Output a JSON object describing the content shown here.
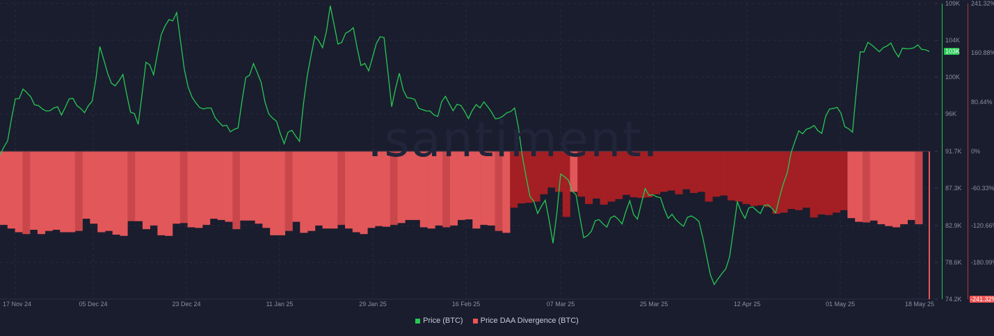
{
  "watermark": ".santiment.",
  "legend": [
    {
      "label": "Price (BTC)",
      "color": "#26c953"
    },
    {
      "label": "Price DAA Divergence (BTC)",
      "color": "#f05454"
    }
  ],
  "colors": {
    "background": "#1a1d2e",
    "price_line": "#26c953",
    "bar_light": "#e2575a",
    "bar_dark": "#a31f24",
    "gridline": "#262a3c",
    "axis_text": "#8a8f9f",
    "price_badge_bg": "#26c953",
    "div_badge_bg": "#f05454"
  },
  "price_badge": "103K",
  "divergence_badge": "-241.32%",
  "chart_data": {
    "type": "line+bar",
    "title": "",
    "series": [
      {
        "name": "Price (BTC)",
        "type": "line",
        "axis": "left-price",
        "values_k": [
          91.2,
          93.0,
          97.5,
          99.0,
          97.8,
          97.0,
          96.2,
          97.0,
          95.8,
          98.0,
          97.0,
          96.3,
          97.2,
          104.0,
          100.6,
          99.3,
          100.5,
          96.5,
          94.7,
          102.3,
          100.6,
          105.5,
          106.8,
          108.0,
          101.0,
          98.0,
          96.6,
          97.0,
          95.5,
          94.8,
          93.9,
          94.5,
          100.0,
          102.0,
          99.5,
          96.0,
          95.0,
          92.8,
          94.0,
          93.0,
          100.5,
          105.3,
          103.5,
          108.8,
          104.0,
          105.5,
          106.0,
          102.0,
          101.0,
          104.5,
          105.0,
          97.0,
          100.5,
          98.0,
          97.5,
          96.5,
          96.2,
          96.0,
          98.0,
          96.6,
          97.0,
          95.6,
          96.8,
          97.5,
          96.0,
          95.5,
          96.0,
          97.0,
          91.0,
          86.5,
          84.3,
          86.0,
          80.5,
          89.0,
          88.0,
          86.5,
          81.3,
          82.5,
          83.5,
          82.9,
          84.0,
          83.2,
          85.5,
          83.7,
          87.0,
          86.5,
          86.0,
          84.0,
          83.5,
          83.0,
          84.0,
          83.5,
          79.0,
          76.0,
          77.0,
          79.2,
          85.5,
          84.0,
          85.0,
          84.5,
          85.3,
          84.5,
          87.5,
          91.5,
          93.8,
          94.2,
          94.5,
          94.0,
          96.5,
          97.0,
          94.5,
          94.0,
          103.0,
          104.5,
          103.5,
          103.8,
          104.2,
          103.0,
          103.6,
          104.0,
          103.6,
          103.5
        ]
      },
      {
        "name": "Price DAA Divergence (BTC)",
        "type": "bar",
        "axis": "right-percent",
        "values_pct": [
          -120,
          -126,
          -132,
          -135,
          -128,
          -135,
          -130,
          -128,
          -132,
          -132,
          -130,
          -110,
          -118,
          -132,
          -130,
          -136,
          -138,
          -114,
          -114,
          -127,
          -121,
          -137,
          -138,
          -118,
          -117,
          -124,
          -125,
          -120,
          -110,
          -112,
          -115,
          -127,
          -113,
          -113,
          -118,
          -125,
          -137,
          -137,
          -130,
          -115,
          -133,
          -130,
          -121,
          -126,
          -126,
          -120,
          -126,
          -132,
          -135,
          -125,
          -122,
          -123,
          -120,
          -117,
          -112,
          -112,
          -124,
          -126,
          -121,
          -124,
          -121,
          -112,
          -111,
          -126,
          -120,
          -121,
          -130,
          -133,
          -92,
          -85,
          -84,
          -82,
          -70,
          -59,
          -66,
          -107,
          -66,
          -74,
          -86,
          -77,
          -87,
          -82,
          -78,
          -71,
          -75,
          -76,
          -75,
          -70,
          -66,
          -64,
          -70,
          -62,
          -68,
          -66,
          -82,
          -74,
          -72,
          -80,
          -82,
          -86,
          -89,
          -88,
          -91,
          -102,
          -100,
          -94,
          -96,
          -92,
          -108,
          -103,
          -104,
          -100,
          -96,
          -109,
          -115,
          -116,
          -113,
          -119,
          -122,
          -124,
          -119,
          -112,
          -119,
          -241.32
        ]
      }
    ],
    "left_axis": {
      "label": "Price (BTC)",
      "ticks": [
        "109K",
        "104K",
        "100K",
        "96K",
        "91.7K",
        "87.3K",
        "82.9K",
        "78.6K",
        "74.2K"
      ],
      "range": [
        74.2,
        109
      ]
    },
    "right_axis": {
      "label": "Price DAA Divergence (BTC)",
      "ticks": [
        "241.32%",
        "160.88%",
        "80.44%",
        "0%",
        "-60.33%",
        "-120.66%",
        "-180.99%",
        "-241.32%"
      ],
      "range": [
        -241.32,
        241.32
      ]
    },
    "x_ticks": [
      "17 Nov 24",
      "05 Dec 24",
      "23 Dec 24",
      "11 Jan 25",
      "29 Jan 25",
      "16 Feb 25",
      "07 Mar 25",
      "25 Mar 25",
      "12 Apr 25",
      "01 May 25",
      "18 May 25"
    ],
    "grid": true,
    "legend_position": "bottom-center"
  }
}
